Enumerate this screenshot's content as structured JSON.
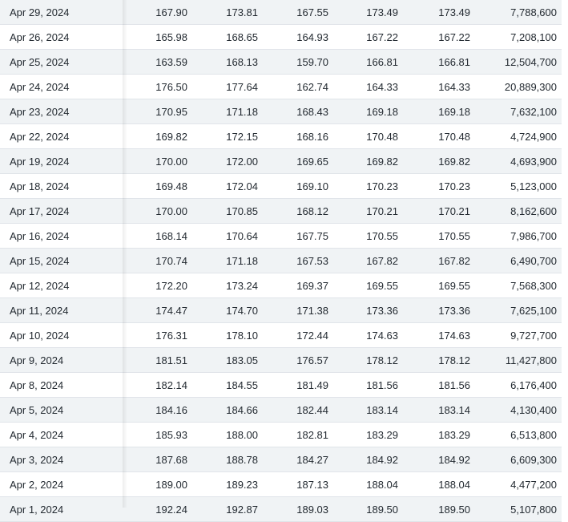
{
  "history_table": {
    "rows": [
      {
        "date": "Apr 29, 2024",
        "open": "167.90",
        "high": "173.81",
        "low": "167.55",
        "close": "173.49",
        "adj_close": "173.49",
        "volume": "7,788,600"
      },
      {
        "date": "Apr 26, 2024",
        "open": "165.98",
        "high": "168.65",
        "low": "164.93",
        "close": "167.22",
        "adj_close": "167.22",
        "volume": "7,208,100"
      },
      {
        "date": "Apr 25, 2024",
        "open": "163.59",
        "high": "168.13",
        "low": "159.70",
        "close": "166.81",
        "adj_close": "166.81",
        "volume": "12,504,700"
      },
      {
        "date": "Apr 24, 2024",
        "open": "176.50",
        "high": "177.64",
        "low": "162.74",
        "close": "164.33",
        "adj_close": "164.33",
        "volume": "20,889,300"
      },
      {
        "date": "Apr 23, 2024",
        "open": "170.95",
        "high": "171.18",
        "low": "168.43",
        "close": "169.18",
        "adj_close": "169.18",
        "volume": "7,632,100"
      },
      {
        "date": "Apr 22, 2024",
        "open": "169.82",
        "high": "172.15",
        "low": "168.16",
        "close": "170.48",
        "adj_close": "170.48",
        "volume": "4,724,900"
      },
      {
        "date": "Apr 19, 2024",
        "open": "170.00",
        "high": "172.00",
        "low": "169.65",
        "close": "169.82",
        "adj_close": "169.82",
        "volume": "4,693,900"
      },
      {
        "date": "Apr 18, 2024",
        "open": "169.48",
        "high": "172.04",
        "low": "169.10",
        "close": "170.23",
        "adj_close": "170.23",
        "volume": "5,123,000"
      },
      {
        "date": "Apr 17, 2024",
        "open": "170.00",
        "high": "170.85",
        "low": "168.12",
        "close": "170.21",
        "adj_close": "170.21",
        "volume": "8,162,600"
      },
      {
        "date": "Apr 16, 2024",
        "open": "168.14",
        "high": "170.64",
        "low": "167.75",
        "close": "170.55",
        "adj_close": "170.55",
        "volume": "7,986,700"
      },
      {
        "date": "Apr 15, 2024",
        "open": "170.74",
        "high": "171.18",
        "low": "167.53",
        "close": "167.82",
        "adj_close": "167.82",
        "volume": "6,490,700"
      },
      {
        "date": "Apr 12, 2024",
        "open": "172.20",
        "high": "173.24",
        "low": "169.37",
        "close": "169.55",
        "adj_close": "169.55",
        "volume": "7,568,300"
      },
      {
        "date": "Apr 11, 2024",
        "open": "174.47",
        "high": "174.70",
        "low": "171.38",
        "close": "173.36",
        "adj_close": "173.36",
        "volume": "7,625,100"
      },
      {
        "date": "Apr 10, 2024",
        "open": "176.31",
        "high": "178.10",
        "low": "172.44",
        "close": "174.63",
        "adj_close": "174.63",
        "volume": "9,727,700"
      },
      {
        "date": "Apr 9, 2024",
        "open": "181.51",
        "high": "183.05",
        "low": "176.57",
        "close": "178.12",
        "adj_close": "178.12",
        "volume": "11,427,800"
      },
      {
        "date": "Apr 8, 2024",
        "open": "182.14",
        "high": "184.55",
        "low": "181.49",
        "close": "181.56",
        "adj_close": "181.56",
        "volume": "6,176,400"
      },
      {
        "date": "Apr 5, 2024",
        "open": "184.16",
        "high": "184.66",
        "low": "182.44",
        "close": "183.14",
        "adj_close": "183.14",
        "volume": "4,130,400"
      },
      {
        "date": "Apr 4, 2024",
        "open": "185.93",
        "high": "188.00",
        "low": "182.81",
        "close": "183.29",
        "adj_close": "183.29",
        "volume": "6,513,800"
      },
      {
        "date": "Apr 3, 2024",
        "open": "187.68",
        "high": "188.78",
        "low": "184.27",
        "close": "184.92",
        "adj_close": "184.92",
        "volume": "6,609,300"
      },
      {
        "date": "Apr 2, 2024",
        "open": "189.00",
        "high": "189.23",
        "low": "187.13",
        "close": "188.04",
        "adj_close": "188.04",
        "volume": "4,477,200"
      },
      {
        "date": "Apr 1, 2024",
        "open": "192.24",
        "high": "192.87",
        "low": "189.03",
        "close": "189.50",
        "adj_close": "189.50",
        "volume": "5,107,800"
      }
    ]
  },
  "colors": {
    "alt_row_bg": "#f0f3f5",
    "text": "#232a31",
    "row_border": "#e0e4e9"
  }
}
